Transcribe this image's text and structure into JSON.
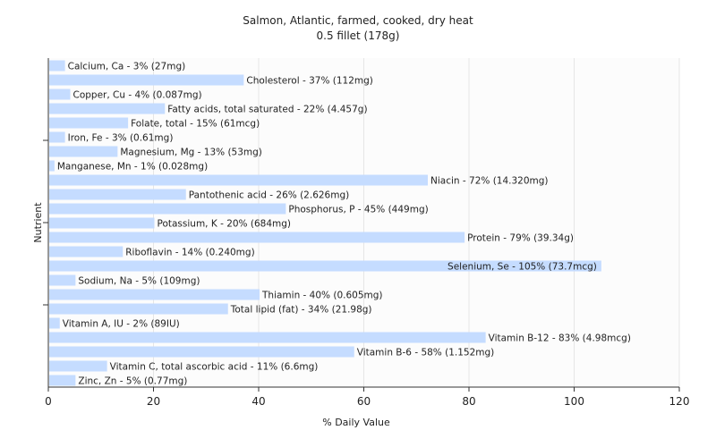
{
  "chart_data": {
    "type": "bar",
    "orientation": "horizontal",
    "title": "Salmon, Atlantic, farmed, cooked, dry heat",
    "subtitle": "0.5 fillet (178g)",
    "xlabel": "% Daily Value",
    "ylabel": "Nutrient",
    "xlim": [
      0,
      120
    ],
    "xticks": [
      "0",
      "20",
      "40",
      "60",
      "80",
      "100",
      "120"
    ],
    "grid": true,
    "bar_color": "#c5dcff",
    "categories": [
      "Calcium, Ca",
      "Cholesterol",
      "Copper, Cu",
      "Fatty acids, total saturated",
      "Folate, total",
      "Iron, Fe",
      "Magnesium, Mg",
      "Manganese, Mn",
      "Niacin",
      "Pantothenic acid",
      "Phosphorus, P",
      "Potassium, K",
      "Protein",
      "Riboflavin",
      "Selenium, Se",
      "Sodium, Na",
      "Thiamin",
      "Total lipid (fat)",
      "Vitamin A, IU",
      "Vitamin B-12",
      "Vitamin B-6",
      "Vitamin C, total ascorbic acid",
      "Zinc, Zn"
    ],
    "values": [
      3,
      37,
      4,
      22,
      15,
      3,
      13,
      1,
      72,
      26,
      45,
      20,
      79,
      14,
      105,
      5,
      40,
      34,
      2,
      83,
      58,
      11,
      5
    ],
    "labels": [
      "Calcium, Ca - 3% (27mg)",
      "Cholesterol - 37% (112mg)",
      "Copper, Cu - 4% (0.087mg)",
      "Fatty acids, total saturated - 22% (4.457g)",
      "Folate, total - 15% (61mcg)",
      "Iron, Fe - 3% (0.61mg)",
      "Magnesium, Mg - 13% (53mg)",
      "Manganese, Mn - 1% (0.028mg)",
      "Niacin - 72% (14.320mg)",
      "Pantothenic acid - 26% (2.626mg)",
      "Phosphorus, P - 45% (449mg)",
      "Potassium, K - 20% (684mg)",
      "Protein - 79% (39.34g)",
      "Riboflavin - 14% (0.240mg)",
      "Selenium, Se - 105% (73.7mcg)",
      "Sodium, Na - 5% (109mg)",
      "Thiamin - 40% (0.605mg)",
      "Total lipid (fat) - 34% (21.98g)",
      "Vitamin A, IU - 2% (89IU)",
      "Vitamin B-12 - 83% (4.98mcg)",
      "Vitamin B-6 - 58% (1.152mg)",
      "Vitamin C, total ascorbic acid - 11% (6.6mg)",
      "Zinc, Zn - 5% (0.77mg)"
    ]
  }
}
